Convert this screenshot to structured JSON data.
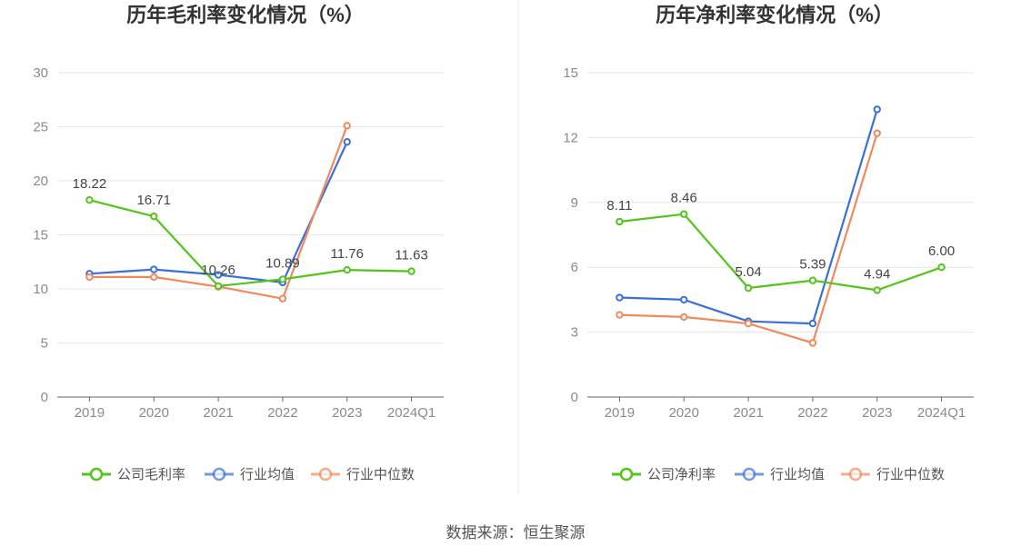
{
  "source": "数据来源：恒生聚源",
  "legend_common": [
    "行业均值",
    "行业中位数"
  ],
  "colors": {
    "company": "#52c41a",
    "avg": "#3a6fd8",
    "median": "#f08a5d",
    "grid": "#e3e6ee",
    "axis": "#666666"
  },
  "chart_data": [
    {
      "type": "line",
      "title": "历年毛利率变化情况（%）",
      "categories": [
        "2019",
        "2020",
        "2021",
        "2022",
        "2023",
        "2024Q1"
      ],
      "ylim": [
        0,
        30
      ],
      "yticks": [
        "0",
        "5",
        "10",
        "15",
        "20",
        "25",
        "30"
      ],
      "ytick_values": [
        0,
        5,
        10,
        15,
        20,
        25,
        30
      ],
      "legend_position": "bottom",
      "series": [
        {
          "name": "公司毛利率",
          "key": "company",
          "values": [
            18.22,
            16.71,
            10.26,
            10.89,
            11.76,
            11.63
          ],
          "labels": [
            "18.22",
            "16.71",
            "10.26",
            "10.89",
            "11.76",
            "11.63"
          ]
        },
        {
          "name": "行业均值",
          "key": "avg",
          "values": [
            11.4,
            11.8,
            11.3,
            10.6,
            23.6,
            null
          ]
        },
        {
          "name": "行业中位数",
          "key": "median",
          "values": [
            11.1,
            11.1,
            10.2,
            9.1,
            25.1,
            null
          ]
        }
      ]
    },
    {
      "type": "line",
      "title": "历年净利率变化情况（%）",
      "categories": [
        "2019",
        "2020",
        "2021",
        "2022",
        "2023",
        "2024Q1"
      ],
      "ylim": [
        0,
        15
      ],
      "yticks": [
        "0",
        "3",
        "6",
        "9",
        "12",
        "15"
      ],
      "ytick_values": [
        0,
        3,
        6,
        9,
        12,
        15
      ],
      "legend_position": "bottom",
      "series": [
        {
          "name": "公司净利率",
          "key": "company",
          "values": [
            8.11,
            8.46,
            5.04,
            5.39,
            4.94,
            6.0
          ],
          "labels": [
            "8.11",
            "8.46",
            "5.04",
            "5.39",
            "4.94",
            "6.00"
          ]
        },
        {
          "name": "行业均值",
          "key": "avg",
          "values": [
            4.6,
            4.5,
            3.5,
            3.4,
            13.3,
            null
          ]
        },
        {
          "name": "行业中位数",
          "key": "median",
          "values": [
            3.8,
            3.7,
            3.4,
            2.5,
            12.2,
            null
          ]
        }
      ]
    }
  ]
}
